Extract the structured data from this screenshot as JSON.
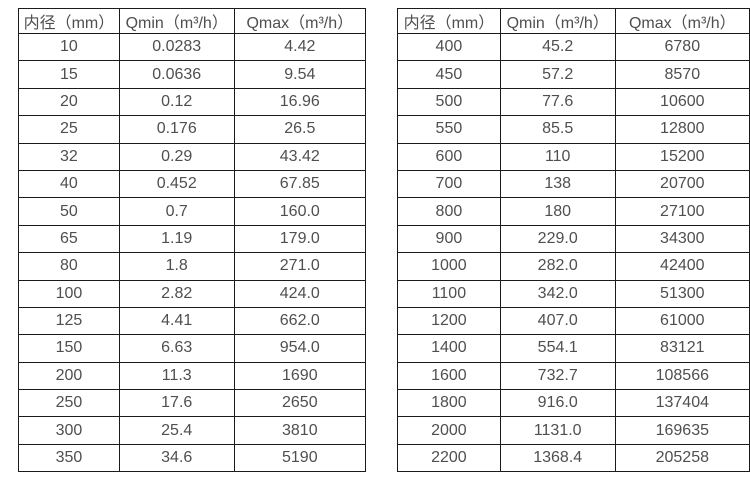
{
  "colors": {
    "background": "#ffffff",
    "border": "#1b1b1b",
    "text": "#4f4f4f"
  },
  "left_table": {
    "headers": [
      "内径（mm）",
      "Qmin（m³/h）",
      "Qmax（m³/h）"
    ],
    "rows": [
      [
        "10",
        "0.0283",
        "4.42"
      ],
      [
        "15",
        "0.0636",
        "9.54"
      ],
      [
        "20",
        "0.12",
        "16.96"
      ],
      [
        "25",
        "0.176",
        "26.5"
      ],
      [
        "32",
        "0.29",
        "43.42"
      ],
      [
        "40",
        "0.452",
        "67.85"
      ],
      [
        "50",
        "0.7",
        "160.0"
      ],
      [
        "65",
        "1.19",
        "179.0"
      ],
      [
        "80",
        "1.8",
        "271.0"
      ],
      [
        "100",
        "2.82",
        "424.0"
      ],
      [
        "125",
        "4.41",
        "662.0"
      ],
      [
        "150",
        "6.63",
        "954.0"
      ],
      [
        "200",
        "11.3",
        "1690"
      ],
      [
        "250",
        "17.6",
        "2650"
      ],
      [
        "300",
        "25.4",
        "3810"
      ],
      [
        "350",
        "34.6",
        "5190"
      ]
    ]
  },
  "right_table": {
    "headers": [
      "内径（mm）",
      "Qmin（m³/h）",
      "Qmax（m³/h）"
    ],
    "rows": [
      [
        "400",
        "45.2",
        "6780"
      ],
      [
        "450",
        "57.2",
        "8570"
      ],
      [
        "500",
        "77.6",
        "10600"
      ],
      [
        "550",
        "85.5",
        "12800"
      ],
      [
        "600",
        "110",
        "15200"
      ],
      [
        "700",
        "138",
        "20700"
      ],
      [
        "800",
        "180",
        "27100"
      ],
      [
        "900",
        "229.0",
        "34300"
      ],
      [
        "1000",
        "282.0",
        "42400"
      ],
      [
        "1100",
        "342.0",
        "51300"
      ],
      [
        "1200",
        "407.0",
        "61000"
      ],
      [
        "1400",
        "554.1",
        "83121"
      ],
      [
        "1600",
        "732.7",
        "108566"
      ],
      [
        "1800",
        "916.0",
        "137404"
      ],
      [
        "2000",
        "1131.0",
        "169635"
      ],
      [
        "2200",
        "1368.4",
        "205258"
      ]
    ]
  }
}
